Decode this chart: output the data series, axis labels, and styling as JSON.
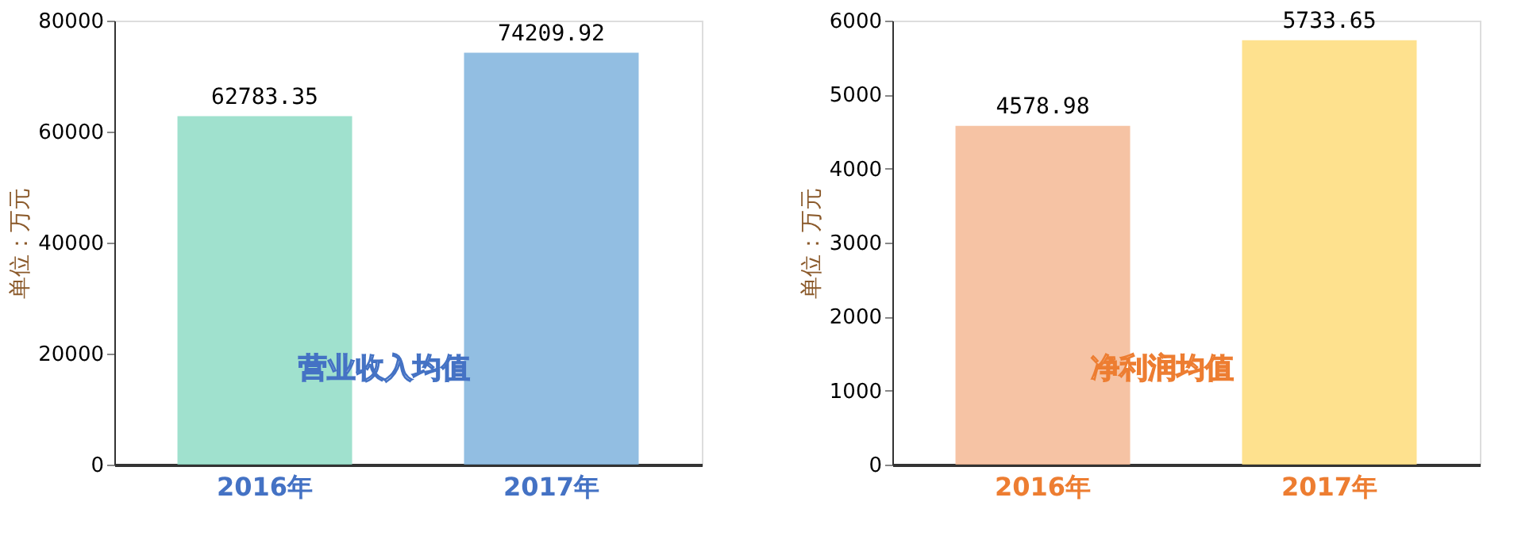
{
  "chart_data": [
    {
      "type": "bar",
      "categories": [
        "2016年",
        "2017年"
      ],
      "values": [
        62783.35,
        74209.92
      ],
      "colors": [
        "#8fdcc6",
        "#7fb3dd"
      ],
      "ylim": [
        0,
        80000
      ],
      "yticks": [
        0,
        20000,
        40000,
        60000,
        80000
      ],
      "ylabel": "单位：万元",
      "data_labels": true,
      "grid": false,
      "annotations": [
        "营业收入均值"
      ]
    },
    {
      "type": "bar",
      "categories": [
        "2016年",
        "2017年"
      ],
      "values": [
        4578.98,
        5733.65
      ],
      "colors": [
        "#f4b994",
        "#fedc7a"
      ],
      "ylim": [
        0,
        6000
      ],
      "yticks": [
        0,
        1000,
        2000,
        3000,
        4000,
        5000,
        6000
      ],
      "ylabel": "单位：万元",
      "data_labels": true,
      "grid": false,
      "annotations": [
        "净利润均值"
      ]
    }
  ]
}
